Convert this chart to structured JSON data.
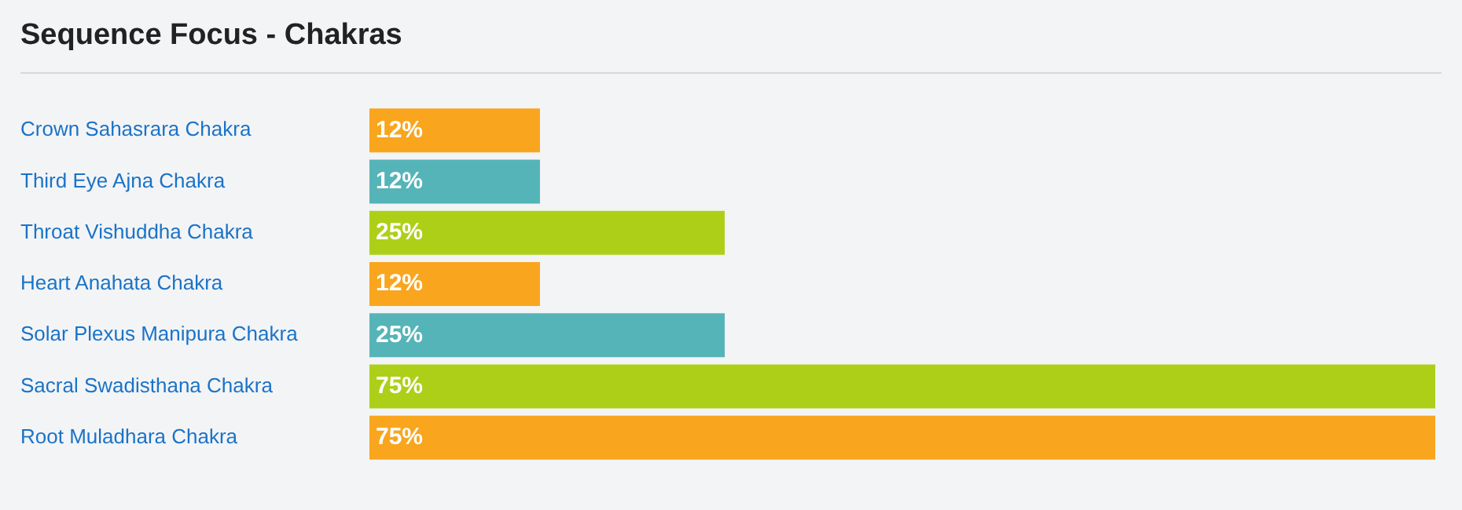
{
  "chart_data": {
    "type": "bar",
    "orientation": "horizontal",
    "title": "Sequence Focus - Chakras",
    "categories": [
      "Crown Sahasrara Chakra",
      "Third Eye Ajna Chakra",
      "Throat Vishuddha Chakra",
      "Heart Anahata Chakra",
      "Solar Plexus Manipura Chakra",
      "Sacral Swadisthana Chakra",
      "Root Muladhara Chakra"
    ],
    "values": [
      12,
      12,
      25,
      12,
      25,
      75,
      75
    ],
    "colors": [
      "#f9a61e",
      "#55b4b8",
      "#aecf18",
      "#f9a61e",
      "#55b4b8",
      "#aecf18",
      "#f9a61e"
    ],
    "value_labels": [
      "12%",
      "12%",
      "25%",
      "12%",
      "25%",
      "75%",
      "75%"
    ],
    "xlim": [
      0,
      75
    ],
    "tick_labels": "y",
    "legend": false
  }
}
